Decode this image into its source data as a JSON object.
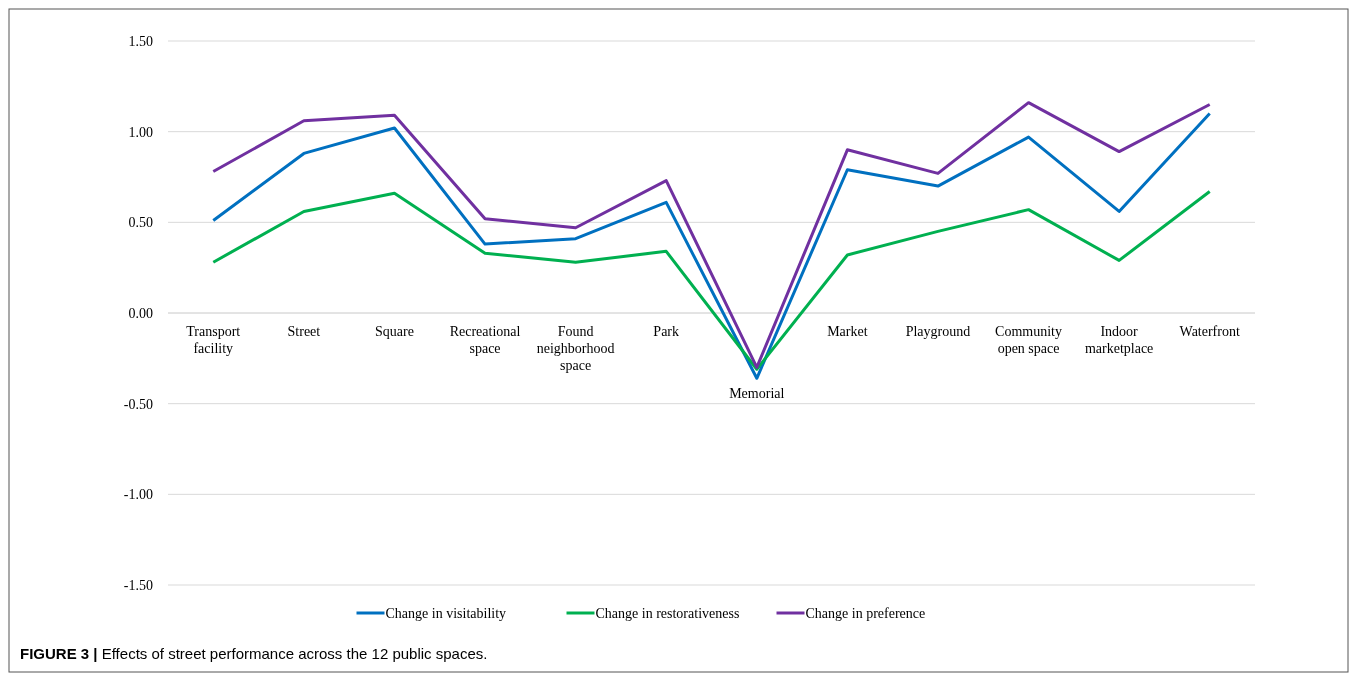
{
  "chart_data": {
    "type": "line",
    "categories": [
      "Transport facility",
      "Street",
      "Square",
      "Recreational space",
      "Found neighborhood space",
      "Park",
      "Memorial",
      "Market",
      "Playground",
      "Community open space",
      "Indoor marketplace",
      "Waterfront"
    ],
    "series": [
      {
        "name": "Change in visitability",
        "color": "#0070c0",
        "values": [
          0.51,
          0.88,
          1.02,
          0.38,
          0.41,
          0.61,
          -0.36,
          0.79,
          0.7,
          0.97,
          0.56,
          1.1
        ]
      },
      {
        "name": "Change in restorativeness",
        "color": "#00b050",
        "values": [
          0.28,
          0.56,
          0.66,
          0.33,
          0.28,
          0.34,
          -0.31,
          0.32,
          0.45,
          0.57,
          0.29,
          0.67
        ]
      },
      {
        "name": "Change in preference",
        "color": "#7030a0",
        "values": [
          0.78,
          1.06,
          1.09,
          0.52,
          0.47,
          0.73,
          -0.3,
          0.9,
          0.77,
          1.16,
          0.89,
          1.15
        ]
      }
    ],
    "ylim": [
      -1.5,
      1.5
    ],
    "yticks": [
      {
        "value": -1.5,
        "label": "-1.50"
      },
      {
        "value": -1,
        "label": "-1.00"
      },
      {
        "value": -0.5,
        "label": "-0.50"
      },
      {
        "value": 0,
        "label": "0.00"
      },
      {
        "value": 0.5,
        "label": "0.50"
      },
      {
        "value": 1,
        "label": "1.00"
      },
      {
        "value": 1.5,
        "label": "1.50"
      }
    ],
    "grid": "y",
    "legend": "bottom",
    "marker": "none",
    "line_style": "solid",
    "annotations": [
      "FIGURE 3 | Effects of street performance across the 12 public spaces."
    ]
  }
}
